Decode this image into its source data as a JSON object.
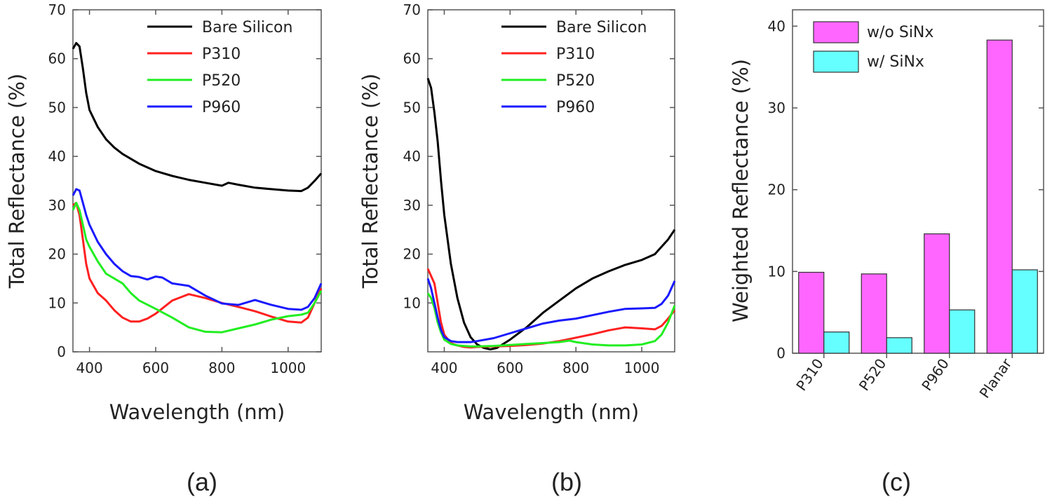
{
  "chart_data": [
    {
      "type": "line",
      "panel_label": "(a)",
      "xlabel": "Wavelength (nm)",
      "ylabel": "Total Reflectance (%)",
      "xlim": [
        350,
        1100
      ],
      "ylim": [
        0,
        70
      ],
      "xticks": [
        400,
        600,
        800,
        1000
      ],
      "yticks": [
        0,
        10,
        20,
        30,
        40,
        50,
        60,
        70
      ],
      "legend_position": "top-right",
      "series": [
        {
          "name": "Bare Silicon",
          "color": "#000000",
          "x": [
            350,
            360,
            370,
            380,
            390,
            400,
            425,
            450,
            475,
            500,
            550,
            600,
            650,
            700,
            750,
            800,
            820,
            850,
            900,
            950,
            1000,
            1040,
            1060,
            1080,
            1100
          ],
          "y": [
            62,
            63.2,
            62.5,
            58,
            53,
            49.5,
            46,
            43.5,
            41.8,
            40.5,
            38.5,
            37.0,
            36.0,
            35.2,
            34.6,
            34.0,
            34.6,
            34.2,
            33.6,
            33.3,
            33.0,
            32.9,
            33.6,
            35.0,
            36.5
          ]
        },
        {
          "name": "P310",
          "color": "#ff2020",
          "x": [
            350,
            360,
            370,
            380,
            390,
            400,
            425,
            450,
            475,
            500,
            525,
            550,
            575,
            600,
            650,
            700,
            750,
            800,
            850,
            900,
            950,
            1000,
            1040,
            1060,
            1080,
            1100
          ],
          "y": [
            30,
            30.5,
            28,
            23,
            18,
            15,
            12,
            10.5,
            8.5,
            7.0,
            6.2,
            6.2,
            6.8,
            7.8,
            10.5,
            11.8,
            11.0,
            10.0,
            9.2,
            8.3,
            7.2,
            6.2,
            6.0,
            7.0,
            10.0,
            13.0
          ]
        },
        {
          "name": "P520",
          "color": "#22ee22",
          "x": [
            350,
            360,
            370,
            380,
            390,
            400,
            425,
            450,
            475,
            500,
            525,
            550,
            600,
            650,
            700,
            750,
            800,
            850,
            900,
            950,
            1000,
            1040,
            1060,
            1080,
            1100
          ],
          "y": [
            29,
            30.5,
            29,
            26,
            23,
            21.5,
            18.5,
            16.0,
            15.0,
            14.0,
            12.0,
            10.5,
            8.8,
            7.0,
            5.0,
            4.1,
            4.0,
            4.8,
            5.6,
            6.6,
            7.3,
            7.6,
            8.0,
            10.0,
            12.5
          ]
        },
        {
          "name": "P960",
          "color": "#1a1aff",
          "x": [
            350,
            360,
            370,
            380,
            390,
            400,
            425,
            450,
            475,
            500,
            525,
            550,
            575,
            600,
            620,
            650,
            700,
            750,
            800,
            850,
            900,
            950,
            1000,
            1040,
            1060,
            1080,
            1100
          ],
          "y": [
            32,
            33.3,
            33.0,
            30.5,
            28,
            26,
            22.5,
            20.0,
            18.0,
            16.5,
            15.5,
            15.3,
            14.8,
            15.4,
            15.2,
            14.0,
            13.5,
            11.5,
            9.9,
            9.6,
            10.6,
            9.6,
            8.8,
            8.6,
            9.2,
            11.0,
            14.0
          ]
        }
      ]
    },
    {
      "type": "line",
      "panel_label": "(b)",
      "xlabel": "Wavelength (nm)",
      "ylabel": "Total Reflectance (%)",
      "xlim": [
        350,
        1100
      ],
      "ylim": [
        0,
        70
      ],
      "xticks": [
        400,
        600,
        800,
        1000
      ],
      "yticks": [
        10,
        20,
        30,
        40,
        50,
        60,
        70
      ],
      "legend_position": "top-right",
      "series": [
        {
          "name": "Bare Silicon",
          "color": "#000000",
          "x": [
            350,
            360,
            370,
            380,
            390,
            400,
            420,
            440,
            460,
            480,
            500,
            520,
            540,
            560,
            600,
            650,
            700,
            750,
            800,
            850,
            900,
            950,
            1000,
            1040,
            1060,
            1080,
            1100
          ],
          "y": [
            56,
            54,
            49,
            43,
            35,
            28,
            18,
            11,
            6,
            3,
            1.5,
            0.8,
            0.5,
            0.8,
            2.5,
            5,
            8,
            10.5,
            13,
            15,
            16.5,
            17.8,
            18.8,
            20,
            21.5,
            23,
            25
          ]
        },
        {
          "name": "P310",
          "color": "#ff2020",
          "x": [
            350,
            360,
            370,
            380,
            390,
            400,
            420,
            440,
            460,
            480,
            500,
            550,
            600,
            650,
            700,
            750,
            800,
            850,
            900,
            950,
            1000,
            1040,
            1060,
            1080,
            1100
          ],
          "y": [
            17,
            15.5,
            14,
            10,
            6,
            3.5,
            1.8,
            1.3,
            1.0,
            0.9,
            1.0,
            1.1,
            1.2,
            1.4,
            1.7,
            2.2,
            2.9,
            3.6,
            4.4,
            5.0,
            4.8,
            4.6,
            5.3,
            6.8,
            8.5
          ]
        },
        {
          "name": "P520",
          "color": "#22ee22",
          "x": [
            350,
            360,
            370,
            380,
            390,
            400,
            420,
            440,
            460,
            480,
            500,
            550,
            600,
            650,
            700,
            750,
            780,
            800,
            850,
            900,
            950,
            1000,
            1040,
            1060,
            1080,
            1100
          ],
          "y": [
            12,
            11,
            9,
            6,
            4,
            2.5,
            1.6,
            1.3,
            1.2,
            1.1,
            1.1,
            1.2,
            1.4,
            1.6,
            1.8,
            2.0,
            2.3,
            2.0,
            1.5,
            1.3,
            1.3,
            1.5,
            2.2,
            3.5,
            6.0,
            9.5
          ]
        },
        {
          "name": "P960",
          "color": "#1a1aff",
          "x": [
            350,
            360,
            370,
            380,
            390,
            400,
            420,
            440,
            460,
            480,
            500,
            550,
            600,
            650,
            700,
            750,
            800,
            850,
            900,
            950,
            1000,
            1040,
            1060,
            1080,
            1100
          ],
          "y": [
            15,
            13,
            10,
            7,
            4.5,
            3.0,
            2.2,
            2.0,
            2.0,
            2.0,
            2.2,
            2.8,
            3.8,
            4.8,
            5.8,
            6.4,
            6.8,
            7.5,
            8.2,
            8.8,
            8.9,
            9.0,
            9.8,
            11.5,
            14.5
          ]
        }
      ]
    },
    {
      "type": "bar",
      "panel_label": "(c)",
      "xlabel": "",
      "ylabel": "Weighted Reflectance (%)",
      "categories": [
        "P310",
        "P520",
        "P960",
        "Planar"
      ],
      "ylim": [
        0,
        42
      ],
      "yticks": [
        0,
        10,
        20,
        30,
        40
      ],
      "legend_position": "top-left",
      "series": [
        {
          "name": "w/o SiNx",
          "color": "#ff66ff",
          "values": [
            9.9,
            9.7,
            14.6,
            38.3
          ]
        },
        {
          "name": "w/ SiNx",
          "color": "#66ffff",
          "values": [
            2.6,
            1.9,
            5.3,
            10.2
          ]
        }
      ]
    }
  ]
}
